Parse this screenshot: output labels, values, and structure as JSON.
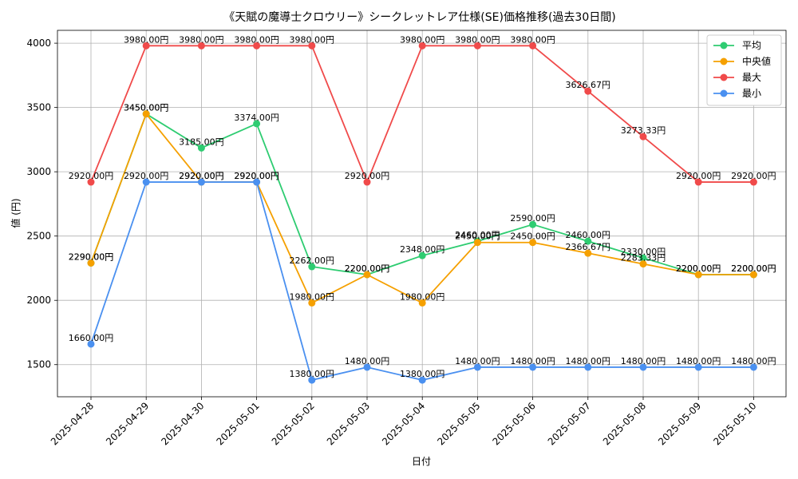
{
  "chart_data": {
    "type": "line",
    "title": "《天賦の魔導士クロウリー》シークレットレア仕様(SE)価格推移(過去30日間)",
    "xlabel": "日付",
    "ylabel": "値 (円)",
    "ylim": [
      1250,
      4100
    ],
    "yticks": [
      1500,
      2000,
      2500,
      3000,
      3500,
      4000
    ],
    "grid": true,
    "legend_position": "top-right",
    "label_suffix": "円",
    "categories": [
      "2025-04-28",
      "2025-04-29",
      "2025-04-30",
      "2025-05-01",
      "2025-05-02",
      "2025-05-03",
      "2025-05-04",
      "2025-05-05",
      "2025-05-06",
      "2025-05-07",
      "2025-05-08",
      "2025-05-09",
      "2025-05-10"
    ],
    "series": [
      {
        "name": "平均",
        "color": "#2ecc71",
        "values": [
          2290,
          3450,
          3185,
          3374,
          2262,
          2200,
          2348,
          2460,
          2590,
          2460,
          2330,
          2200,
          2200
        ]
      },
      {
        "name": "中央値",
        "color": "#f5a000",
        "values": [
          2290,
          3450,
          2920,
          2920,
          1980,
          2200,
          1980,
          2450,
          2450,
          2366.67,
          2283.33,
          2200,
          2200
        ]
      },
      {
        "name": "最大",
        "color": "#f04a4a",
        "values": [
          2920,
          3980,
          3980,
          3980,
          3980,
          2920,
          3980,
          3980,
          3980,
          3626.67,
          3273.33,
          2920,
          2920
        ]
      },
      {
        "name": "最小",
        "color": "#4a90f0",
        "values": [
          1660,
          2920,
          2920,
          2920,
          1380,
          1480,
          1380,
          1480,
          1480,
          1480,
          1480,
          1480,
          1480
        ]
      }
    ]
  }
}
